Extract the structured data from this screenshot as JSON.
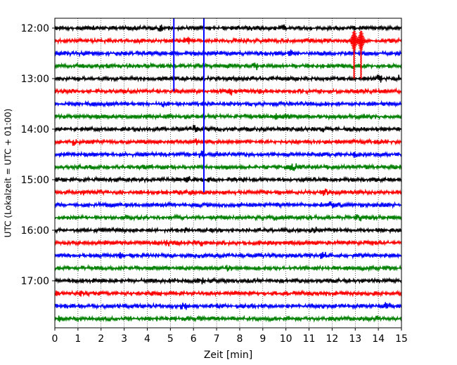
{
  "chart_data": {
    "type": "line",
    "title": "",
    "xlabel": "Zeit  [min]",
    "ylabel": "UTC (Lokalzeit = UTC + 01:00)",
    "xlim": [
      0,
      15
    ],
    "x_ticks": [
      "0",
      "1",
      "2",
      "3",
      "4",
      "5",
      "6",
      "7",
      "8",
      "9",
      "10",
      "11",
      "12",
      "13",
      "14",
      "15"
    ],
    "y_ticks": [
      {
        "label": "12:00",
        "hour": 12
      },
      {
        "label": "13:00",
        "hour": 13
      },
      {
        "label": "14:00",
        "hour": 14
      },
      {
        "label": "15:00",
        "hour": 15
      },
      {
        "label": "16:00",
        "hour": 16
      },
      {
        "label": "17:00",
        "hour": 17
      }
    ],
    "grid": {
      "x": "dotted",
      "y": "none"
    },
    "trace_interval_minutes": 15,
    "traces_start": "12:00",
    "trace_count": 24,
    "trace_colors": [
      "#000000",
      "#ff0000",
      "#0000ff",
      "#008000"
    ],
    "events": [
      {
        "minute": 5.15,
        "from": "12:00",
        "to": "13:15",
        "color": "#0000ff"
      },
      {
        "minute": 6.45,
        "from": "12:00",
        "to": "15:15",
        "color": "#0000ff"
      },
      {
        "minute": 12.95,
        "from": "12:15",
        "to": "13:00",
        "color": "#ff0000"
      },
      {
        "minute": 13.25,
        "from": "12:15",
        "to": "13:00",
        "color": "#ff0000"
      }
    ]
  }
}
